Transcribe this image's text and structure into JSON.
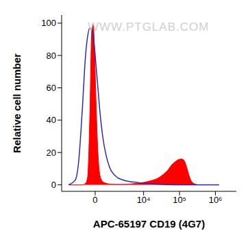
{
  "chart_data": {
    "type": "area",
    "x_label": "APC-65197 CD19 (4G7)",
    "y_label": "Relative cell number",
    "annotations": [
      "WWW.PTGLAB.COM"
    ],
    "log": "x",
    "grid": false,
    "xlim": [
      -3800,
      3800000
    ],
    "xticks": [
      0,
      {
        "value": 10000,
        "label": "10⁴"
      },
      {
        "value": 100000,
        "label": "10⁵"
      },
      {
        "value": 1000000,
        "label": "10⁶"
      }
    ],
    "ylim": [
      -4,
      105
    ],
    "yticks": [
      0,
      20,
      40,
      60,
      80,
      100
    ],
    "x": [
      -2400,
      -1480,
      -1130,
      -840,
      -590,
      -450,
      -320,
      -200,
      -120,
      -40,
      40,
      160,
      280,
      450,
      690,
      950,
      1640,
      2650,
      4170,
      6530,
      10000,
      15700,
      24300,
      37700,
      47000,
      58600,
      73000,
      91000,
      113000,
      129000,
      153000,
      183000,
      217000,
      271000,
      338000,
      524000,
      1260000
    ],
    "series": [
      {
        "type": "area",
        "color": "#ff0000",
        "values": [
          0,
          0,
          0,
          0,
          1,
          5,
          40,
          95,
          100,
          85,
          55,
          20,
          6,
          2,
          1,
          0.5,
          0.3,
          0.3,
          0.5,
          1,
          1.5,
          2.5,
          4,
          7,
          9,
          12,
          14,
          15.5,
          16,
          15.5,
          12,
          6,
          2,
          0.5,
          0,
          0,
          0
        ]
      },
      {
        "type": "line",
        "color": "#2b2bb8",
        "values": [
          0,
          3,
          15,
          45,
          80,
          92,
          97,
          96,
          92,
          85,
          75,
          60,
          45,
          30,
          18,
          11,
          5,
          3,
          2,
          1.5,
          1,
          0.7,
          0.4,
          0.2,
          0.15,
          0.1,
          0,
          0,
          0,
          0,
          0,
          0,
          0,
          0,
          0,
          0,
          0
        ]
      }
    ]
  }
}
